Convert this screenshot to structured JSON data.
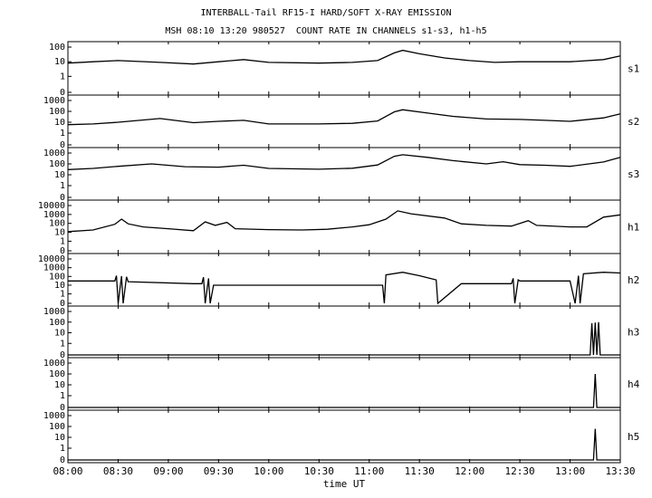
{
  "header": {
    "title": "INTERBALL-Tail RF15-I HARD/SOFT X-RAY EMISSION",
    "subtitle": "MSH 08:10 13:20 980527  COUNT RATE IN CHANNELS s1-s3, h1-h5"
  },
  "chart_data": {
    "type": "line",
    "title": "INTERBALL-Tail RF15-I HARD/SOFT X-RAY EMISSION",
    "subtitle": "MSH 08:10 13:20 980527  COUNT RATE IN CHANNELS s1-s3, h1-h5",
    "xlabel": "time UT",
    "x_ticks": [
      "08:00",
      "08:30",
      "09:00",
      "09:30",
      "10:00",
      "10:30",
      "11:00",
      "11:30",
      "12:00",
      "12:30",
      "13:00",
      "13:30"
    ],
    "xlim": [
      "08:00",
      "13:30"
    ],
    "y_scale": "log",
    "panels": [
      {
        "name": "s1",
        "ytick_labels": [
          "100",
          "10",
          "1",
          "0"
        ],
        "points": [
          [
            "08:00",
            8
          ],
          [
            "08:15",
            10
          ],
          [
            "08:30",
            12
          ],
          [
            "08:55",
            9
          ],
          [
            "09:15",
            7
          ],
          [
            "09:30",
            10
          ],
          [
            "09:45",
            14
          ],
          [
            "10:00",
            9
          ],
          [
            "10:30",
            8
          ],
          [
            "10:50",
            9
          ],
          [
            "11:05",
            12
          ],
          [
            "11:15",
            40
          ],
          [
            "11:20",
            60
          ],
          [
            "11:30",
            35
          ],
          [
            "11:45",
            18
          ],
          [
            "12:00",
            12
          ],
          [
            "12:15",
            9
          ],
          [
            "12:30",
            10
          ],
          [
            "12:45",
            10
          ],
          [
            "13:00",
            10
          ],
          [
            "13:20",
            14
          ],
          [
            "13:30",
            25
          ]
        ]
      },
      {
        "name": "s2",
        "ytick_labels": [
          "1000",
          "100",
          "10",
          "1",
          "0"
        ],
        "points": [
          [
            "08:00",
            6
          ],
          [
            "08:15",
            7
          ],
          [
            "08:30",
            10
          ],
          [
            "08:55",
            22
          ],
          [
            "09:15",
            9
          ],
          [
            "09:30",
            12
          ],
          [
            "09:45",
            15
          ],
          [
            "10:00",
            7
          ],
          [
            "10:30",
            7
          ],
          [
            "10:50",
            8
          ],
          [
            "11:05",
            13
          ],
          [
            "11:15",
            90
          ],
          [
            "11:20",
            140
          ],
          [
            "11:35",
            70
          ],
          [
            "11:50",
            35
          ],
          [
            "12:10",
            20
          ],
          [
            "12:30",
            18
          ],
          [
            "12:45",
            15
          ],
          [
            "13:00",
            12
          ],
          [
            "13:20",
            25
          ],
          [
            "13:30",
            60
          ]
        ]
      },
      {
        "name": "s3",
        "ytick_labels": [
          "1000",
          "100",
          "10",
          "1",
          "0"
        ],
        "points": [
          [
            "08:00",
            30
          ],
          [
            "08:15",
            38
          ],
          [
            "08:30",
            60
          ],
          [
            "08:50",
            100
          ],
          [
            "09:10",
            55
          ],
          [
            "09:30",
            50
          ],
          [
            "09:45",
            75
          ],
          [
            "10:00",
            38
          ],
          [
            "10:30",
            32
          ],
          [
            "10:50",
            40
          ],
          [
            "11:05",
            80
          ],
          [
            "11:15",
            500
          ],
          [
            "11:20",
            700
          ],
          [
            "11:35",
            400
          ],
          [
            "11:50",
            200
          ],
          [
            "12:10",
            100
          ],
          [
            "12:20",
            160
          ],
          [
            "12:30",
            85
          ],
          [
            "12:45",
            75
          ],
          [
            "13:00",
            60
          ],
          [
            "13:20",
            150
          ],
          [
            "13:30",
            400
          ]
        ]
      },
      {
        "name": "h1",
        "ytick_labels": [
          "10000",
          "1000",
          "100",
          "10",
          "1",
          "0"
        ],
        "points": [
          [
            "08:00",
            12
          ],
          [
            "08:15",
            18
          ],
          [
            "08:28",
            80
          ],
          [
            "08:32",
            300
          ],
          [
            "08:36",
            90
          ],
          [
            "08:45",
            40
          ],
          [
            "09:00",
            25
          ],
          [
            "09:15",
            15
          ],
          [
            "09:22",
            150
          ],
          [
            "09:28",
            60
          ],
          [
            "09:35",
            130
          ],
          [
            "09:40",
            25
          ],
          [
            "10:00",
            20
          ],
          [
            "10:20",
            18
          ],
          [
            "10:35",
            22
          ],
          [
            "10:50",
            40
          ],
          [
            "11:00",
            70
          ],
          [
            "11:10",
            300
          ],
          [
            "11:17",
            2500
          ],
          [
            "11:25",
            1200
          ],
          [
            "11:45",
            400
          ],
          [
            "11:55",
            90
          ],
          [
            "12:10",
            60
          ],
          [
            "12:25",
            50
          ],
          [
            "12:35",
            200
          ],
          [
            "12:40",
            60
          ],
          [
            "13:00",
            40
          ],
          [
            "13:10",
            40
          ],
          [
            "13:20",
            500
          ],
          [
            "13:30",
            900
          ]
        ]
      },
      {
        "name": "h2",
        "ytick_labels": [
          "10000",
          "1000",
          "100",
          "10",
          "1",
          "0"
        ],
        "points": [
          [
            "08:00",
            30
          ],
          [
            "08:28",
            30
          ],
          [
            "08:29",
            120
          ],
          [
            "08:30",
            0
          ],
          [
            "08:32",
            110
          ],
          [
            "08:33",
            0
          ],
          [
            "08:35",
            90
          ],
          [
            "08:36",
            25
          ],
          [
            "09:15",
            15
          ],
          [
            "09:20",
            15
          ],
          [
            "09:21",
            80
          ],
          [
            "09:22",
            0
          ],
          [
            "09:24",
            60
          ],
          [
            "09:25",
            0
          ],
          [
            "09:27",
            10
          ],
          [
            "10:30",
            10
          ],
          [
            "11:08",
            10
          ],
          [
            "11:09",
            0
          ],
          [
            "11:10",
            150
          ],
          [
            "11:20",
            300
          ],
          [
            "11:30",
            120
          ],
          [
            "11:40",
            40
          ],
          [
            "11:41",
            0
          ],
          [
            "11:55",
            15
          ],
          [
            "12:25",
            15
          ],
          [
            "12:26",
            60
          ],
          [
            "12:27",
            0
          ],
          [
            "12:29",
            40
          ],
          [
            "12:30",
            30
          ],
          [
            "13:00",
            30
          ],
          [
            "13:03",
            0
          ],
          [
            "13:05",
            120
          ],
          [
            "13:06",
            0
          ],
          [
            "13:08",
            200
          ],
          [
            "13:20",
            300
          ],
          [
            "13:30",
            250
          ]
        ]
      },
      {
        "name": "h3",
        "ytick_labels": [
          "1000",
          "100",
          "10",
          "1",
          "0"
        ],
        "points": [
          [
            "08:00",
            0
          ],
          [
            "13:12",
            0
          ],
          [
            "13:13",
            80
          ],
          [
            "13:14",
            0
          ],
          [
            "13:15",
            90
          ],
          [
            "13:16",
            0
          ],
          [
            "13:17",
            100
          ],
          [
            "13:18",
            0
          ],
          [
            "13:30",
            0
          ]
        ]
      },
      {
        "name": "h4",
        "ytick_labels": [
          "1000",
          "100",
          "10",
          "1",
          "0"
        ],
        "points": [
          [
            "08:00",
            0
          ],
          [
            "13:14",
            0
          ],
          [
            "13:15",
            100
          ],
          [
            "13:16",
            0
          ],
          [
            "13:30",
            0
          ]
        ]
      },
      {
        "name": "h5",
        "ytick_labels": [
          "1000",
          "100",
          "10",
          "1",
          "0"
        ],
        "points": [
          [
            "08:00",
            0
          ],
          [
            "13:14",
            0
          ],
          [
            "13:15",
            60
          ],
          [
            "13:16",
            0
          ],
          [
            "13:30",
            0
          ]
        ]
      }
    ]
  }
}
